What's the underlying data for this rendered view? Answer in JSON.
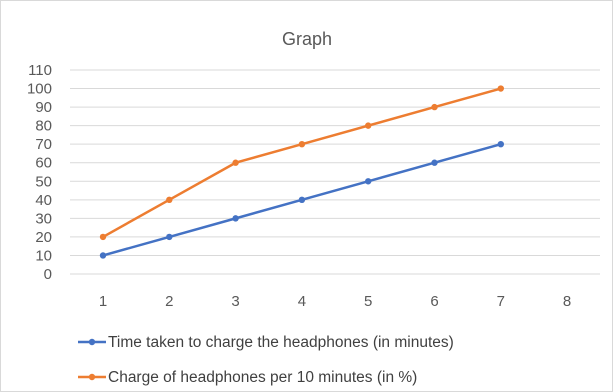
{
  "chart_data": {
    "type": "line",
    "title": "Graph",
    "xlabel": "",
    "ylabel": "",
    "x_ticks": [
      "1",
      "2",
      "3",
      "4",
      "5",
      "6",
      "7",
      "8"
    ],
    "x_range": [
      1,
      8
    ],
    "y_ticks": [
      "0",
      "10",
      "20",
      "30",
      "40",
      "50",
      "60",
      "70",
      "80",
      "90",
      "100",
      "110"
    ],
    "ylim": [
      0,
      110
    ],
    "grid": "horizontal",
    "legend_position": "bottom",
    "series": [
      {
        "name": "Time taken to charge the headphones (in minutes)",
        "color": "#4472c4",
        "x": [
          1,
          2,
          3,
          4,
          5,
          6,
          7
        ],
        "values": [
          10,
          20,
          30,
          40,
          50,
          60,
          70
        ]
      },
      {
        "name": "Charge of headphones per 10 minutes (in %)",
        "color": "#ed7d31",
        "x": [
          1,
          2,
          3,
          4,
          5,
          6,
          7
        ],
        "values": [
          20,
          40,
          60,
          70,
          80,
          90,
          100
        ]
      }
    ]
  }
}
